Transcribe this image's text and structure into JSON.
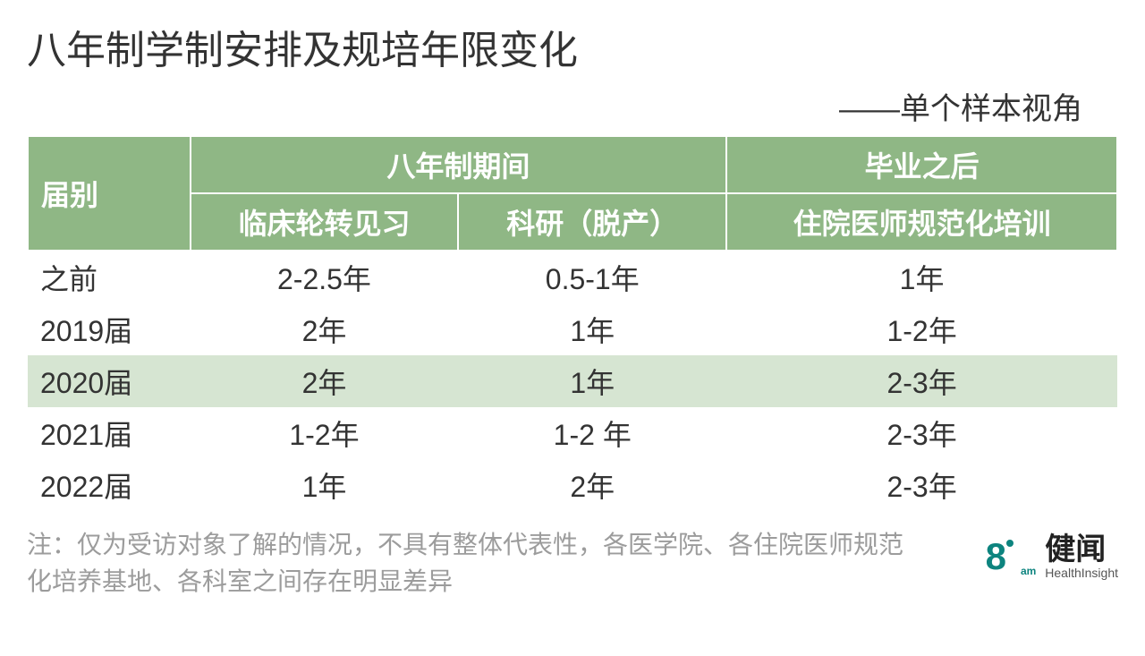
{
  "title": "八年制学制安排及规培年限变化",
  "subtitle": "——单个样本视角",
  "table": {
    "type": "table",
    "header_bg": "#8fb785",
    "header_fg": "#ffffff",
    "highlight_bg": "#d6e5d2",
    "border_color": "#ffffff",
    "font_size": 32,
    "row_header_label": "届别",
    "group1_label": "八年制期间",
    "group2_label": "毕业之后",
    "subcol1": "临床轮转见习",
    "subcol2": "科研（脱产）",
    "subcol3": "住院医师规范化培训",
    "rows": [
      {
        "cohort": "之前",
        "clinical": "2-2.5年",
        "research": "0.5-1年",
        "residency": "1年",
        "highlight": false
      },
      {
        "cohort": "2019届",
        "clinical": "2年",
        "research": "1年",
        "residency": "1-2年",
        "highlight": false
      },
      {
        "cohort": "2020届",
        "clinical": "2年",
        "research": "1年",
        "residency": "2-3年",
        "highlight": true
      },
      {
        "cohort": "2021届",
        "clinical": "1-2年",
        "research": "1-2 年",
        "residency": "2-3年",
        "highlight": false
      },
      {
        "cohort": "2022届",
        "clinical": "1年",
        "research": "2年",
        "residency": "2-3年",
        "highlight": false
      }
    ]
  },
  "footnote": "注：仅为受访对象了解的情况，不具有整体代表性，各医学院、各住院医师规范化培养基地、各科室之间存在明显差异",
  "logo": {
    "eight": "8",
    "am": "am",
    "cn": "健闻",
    "en": "HealthInsight",
    "brand_color": "#0d847f"
  }
}
